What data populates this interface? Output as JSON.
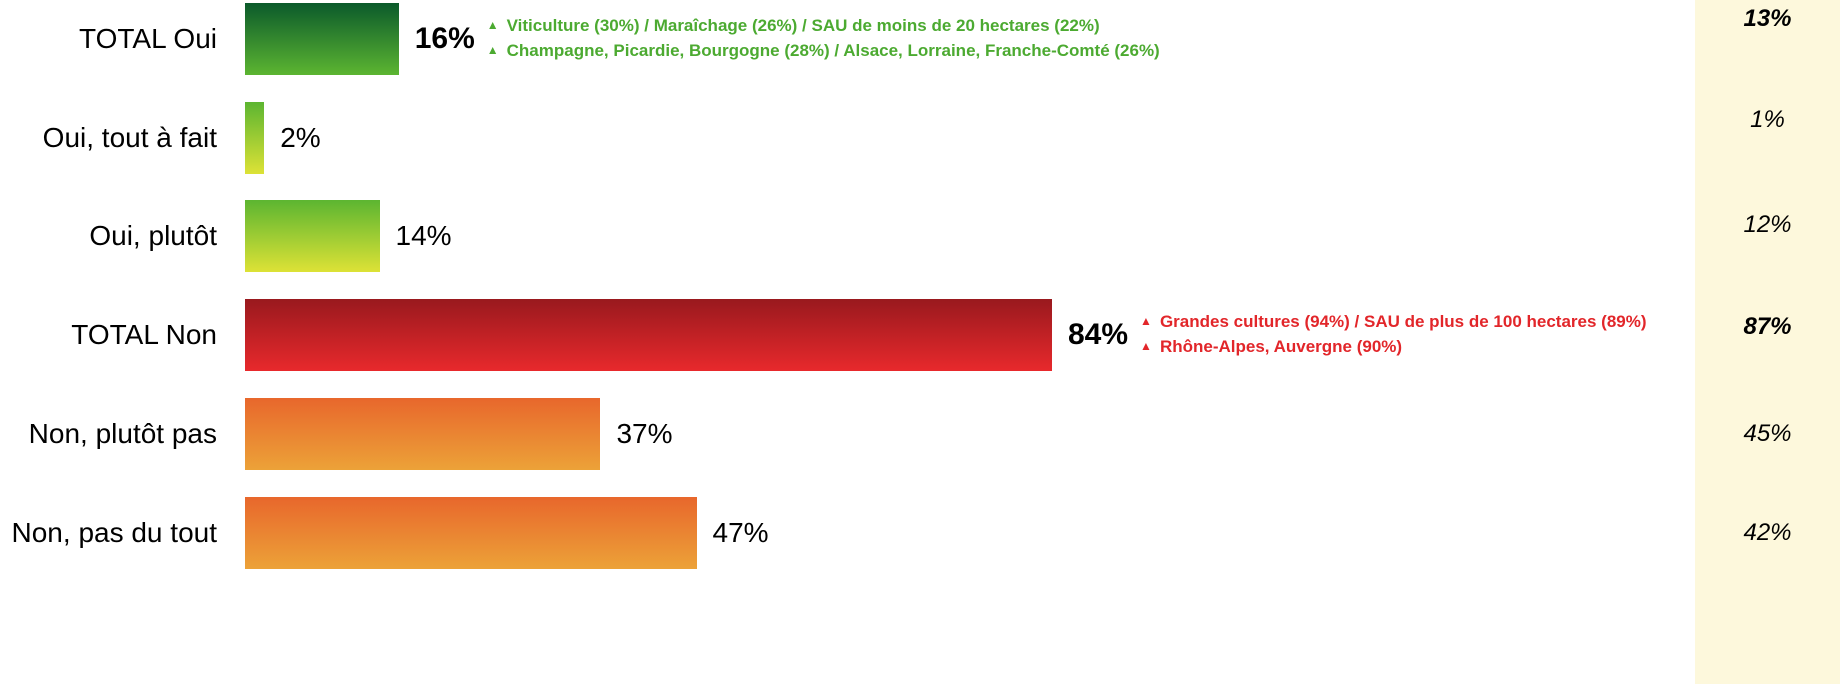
{
  "chart_data": {
    "type": "bar",
    "orientation": "horizontal",
    "categories": [
      "TOTAL Oui",
      "Oui, tout à fait",
      "Oui, plutôt",
      "TOTAL Non",
      "Non, plutôt pas",
      "Non, pas du tout"
    ],
    "values": [
      16,
      2,
      14,
      84,
      37,
      47
    ],
    "value_labels": [
      "16%",
      "2%",
      "14%",
      "84%",
      "37%",
      "47%"
    ],
    "bold": [
      true,
      false,
      false,
      true,
      false,
      false
    ],
    "colors": [
      [
        "#0b5a2b",
        "#5cb531"
      ],
      [
        "#5cb531",
        "#dde236"
      ],
      [
        "#5cb531",
        "#dde236"
      ],
      [
        "#99191e",
        "#e8292c"
      ],
      [
        "#e8672c",
        "#eca238"
      ],
      [
        "#e8672c",
        "#eca238"
      ]
    ],
    "annotations": [
      [
        "Viticulture (30%) / Maraîchage (26%) / SAU de moins de 20 hectares (22%)",
        "Champagne, Picardie, Bourgogne (28%) / Alsace,  Lorraine, Franche-Comté (26%)"
      ],
      [],
      [],
      [
        "Grandes cultures (94%) / SAU de plus de 100 hectares (89%)",
        "Rhône-Alpes, Auvergne (90%)"
      ],
      [],
      []
    ],
    "annotation_colors": [
      "#4caa31",
      null,
      null,
      "#e2262a",
      null,
      null
    ],
    "comparison": {
      "values": [
        13,
        1,
        12,
        87,
        45,
        42
      ],
      "value_labels": [
        "13%",
        "1%",
        "12%",
        "87%",
        "45%",
        "42%"
      ],
      "color": "#fdf8dc"
    }
  }
}
